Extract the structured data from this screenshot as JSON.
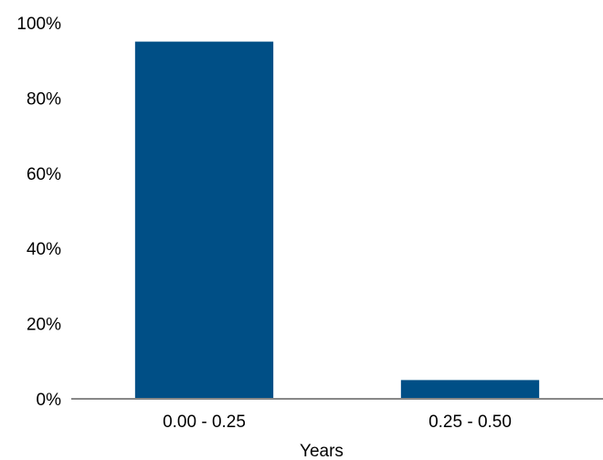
{
  "chart_data": {
    "type": "bar",
    "title": "",
    "xlabel": "Years",
    "ylabel": "",
    "categories": [
      "0.00 - 0.25",
      "0.25 - 0.50"
    ],
    "values": [
      95,
      5
    ],
    "ylim": [
      0,
      100
    ],
    "yticks": [
      0,
      20,
      40,
      60,
      80,
      100
    ],
    "ytick_format": "{v}%",
    "grid": false,
    "legend": "none",
    "colors": {
      "bar": "#004f86",
      "axis": "#888888"
    }
  }
}
